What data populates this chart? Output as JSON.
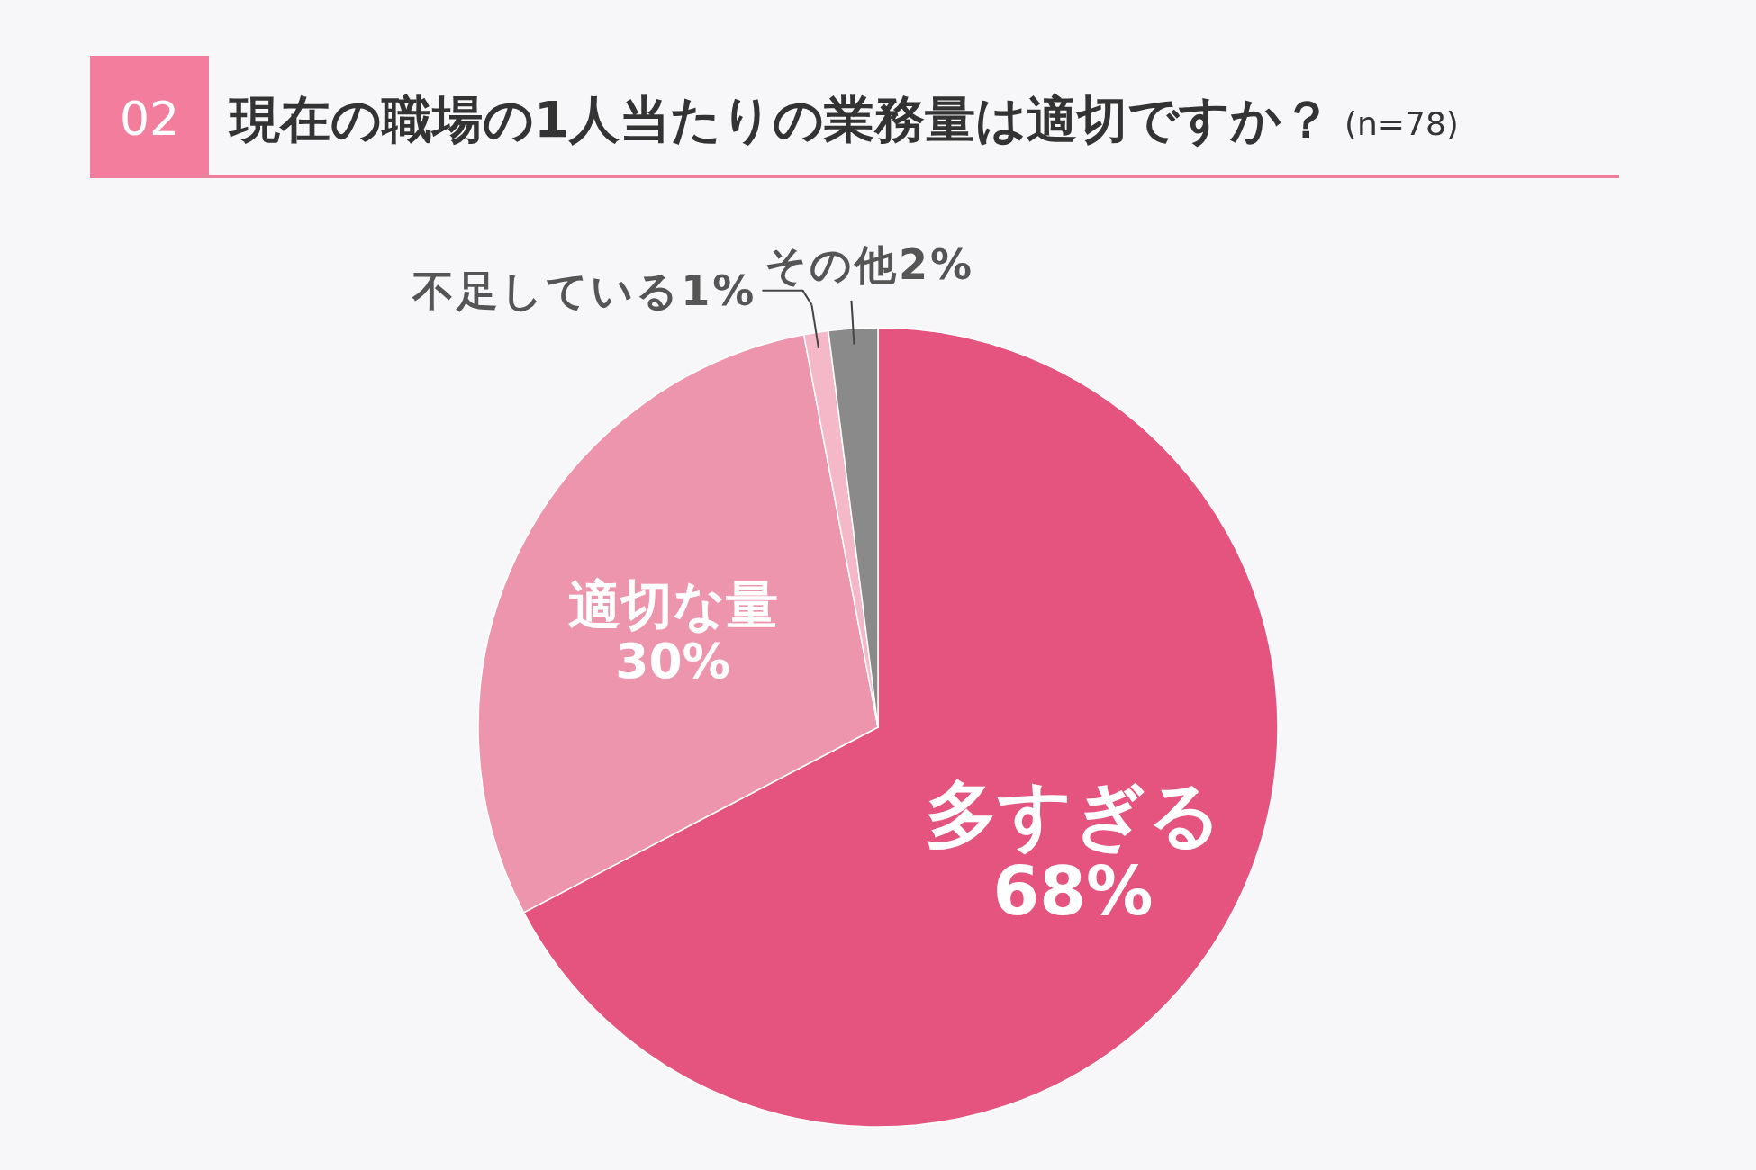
{
  "chart_data": {
    "type": "pie",
    "title": "現在の職場の1人当たりの業務量は適切ですか？",
    "subtitle": "(n=78)",
    "annotations": [
      "02"
    ],
    "categories": [
      "多すぎる",
      "適切な量",
      "不足している",
      "その他"
    ],
    "values": [
      68,
      30,
      1,
      2
    ],
    "value_labels": [
      "68%",
      "30%",
      "1%",
      "2%"
    ],
    "colors": [
      "#e4547e",
      "#ee95ae",
      "#f5b8c8",
      "#8a8a8a"
    ]
  }
}
